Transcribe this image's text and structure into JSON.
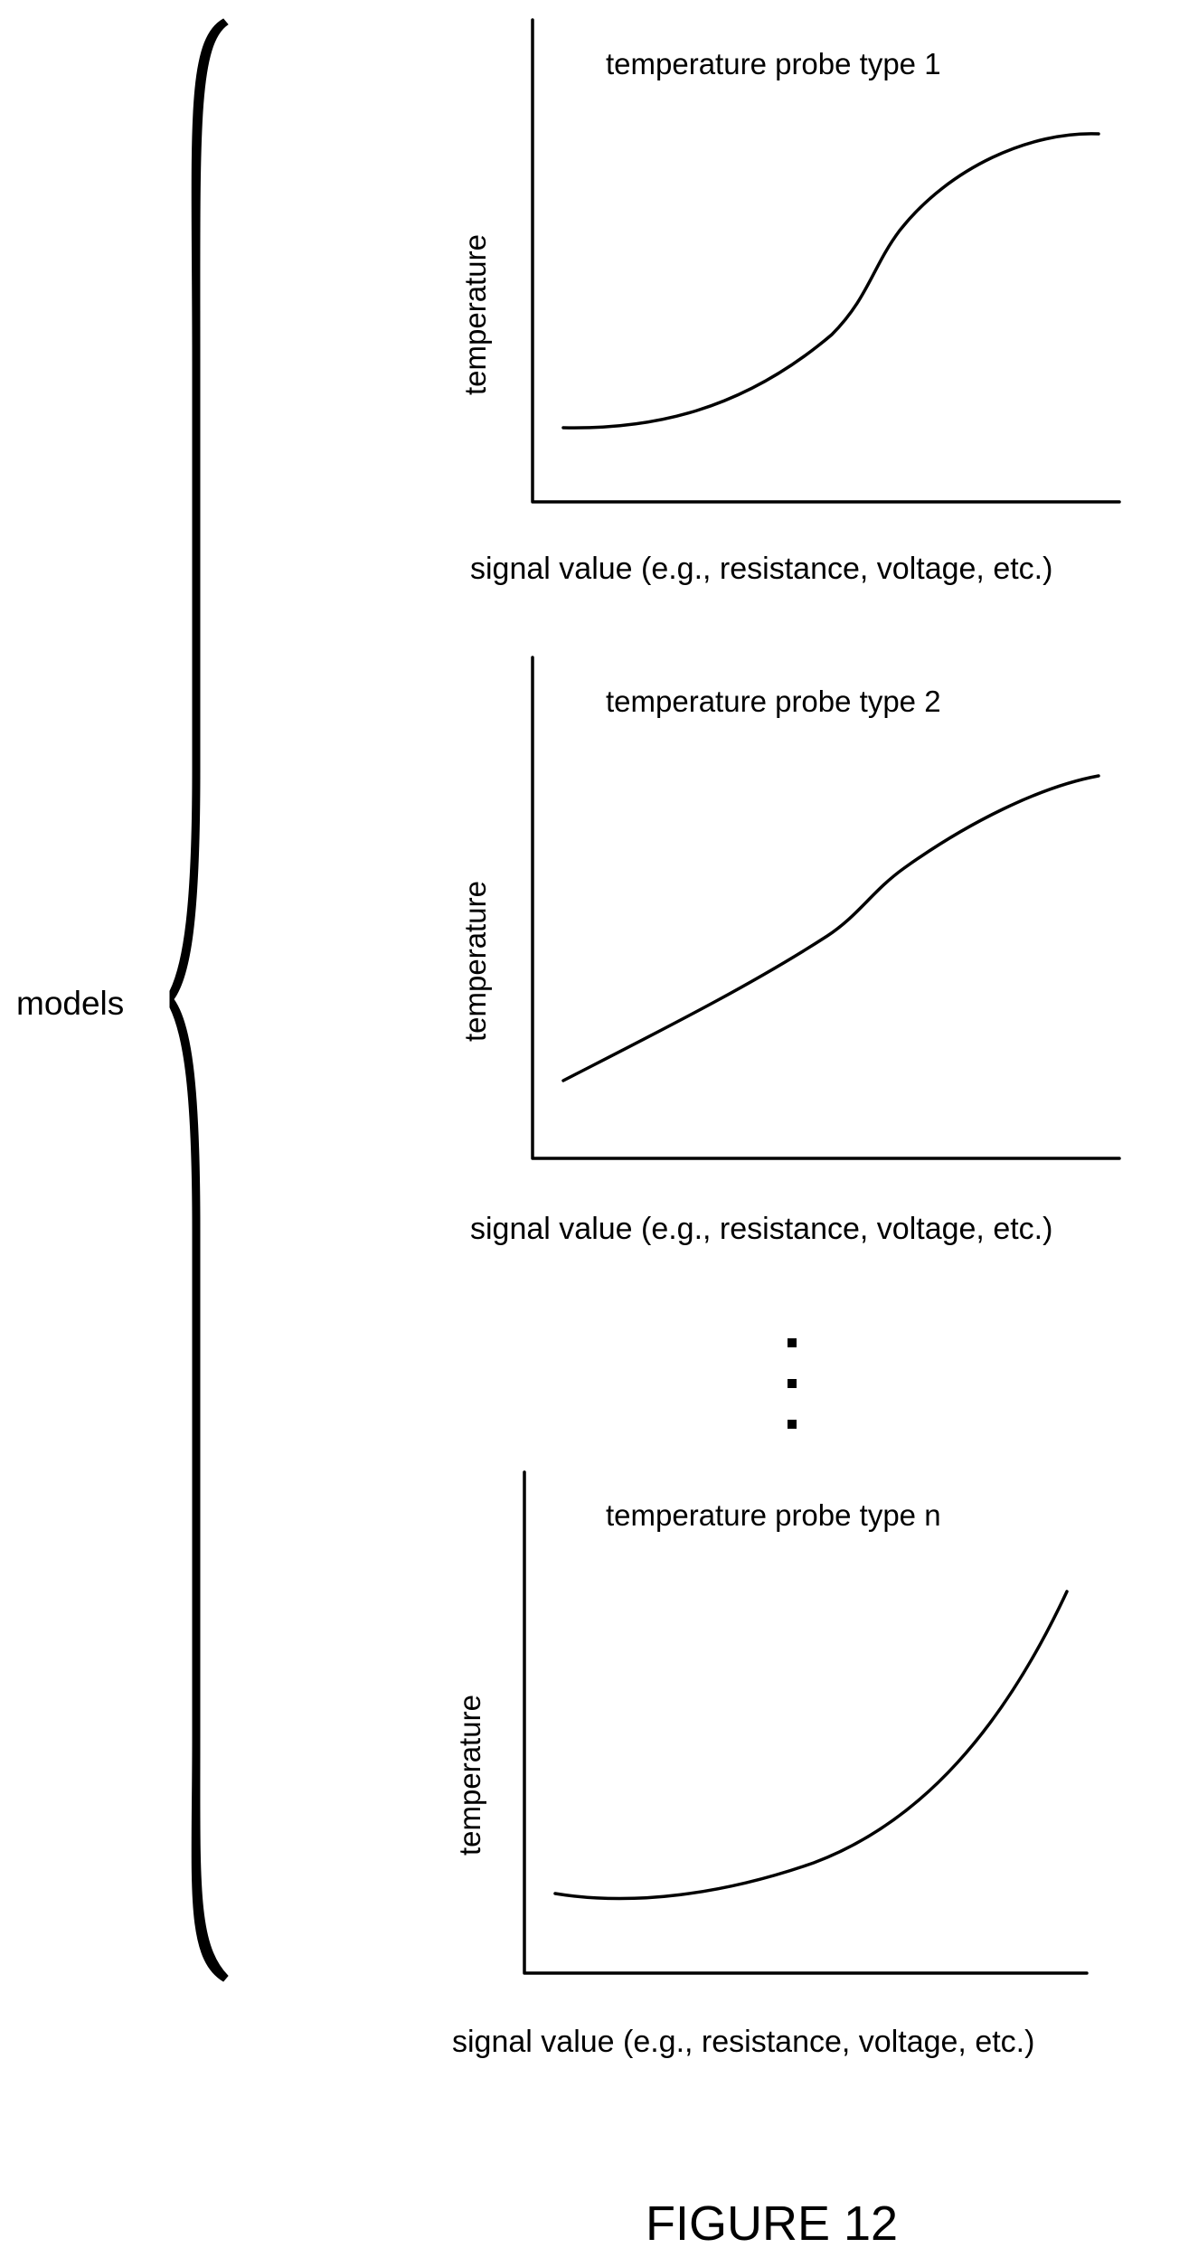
{
  "models_label": "models",
  "figure_label": "FIGURE 12",
  "ellipsis": "⋮",
  "graphs": [
    {
      "title": "temperature probe type 1",
      "ylabel": "temperature",
      "xlabel": "signal value (e.g., resistance, voltage, etc.)",
      "curve_shape": "sigmoid"
    },
    {
      "title": "temperature probe type 2",
      "ylabel": "temperature",
      "xlabel": "signal value (e.g., resistance, voltage, etc.)",
      "curve_shape": "near-linear rising"
    },
    {
      "title": "temperature probe type n",
      "ylabel": "temperature",
      "xlabel": "signal value (e.g., resistance, voltage, etc.)",
      "curve_shape": "exponential rising"
    }
  ]
}
